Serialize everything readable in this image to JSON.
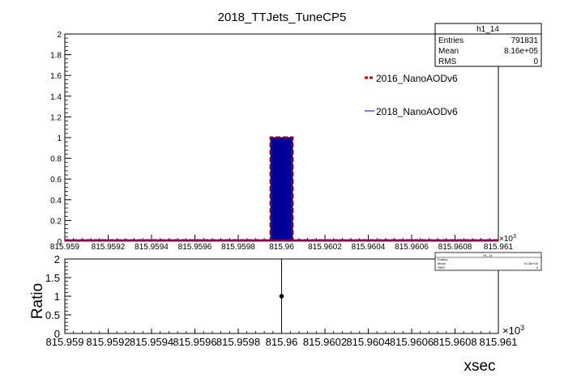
{
  "title": "2018_TTJets_TuneCP5",
  "colors": {
    "series_2016": "#cc0000",
    "series_2018": "#000099",
    "mean_fill": "#cc0000",
    "ratio_point": "#000000",
    "ratio_error": "#000099"
  },
  "stats_box": {
    "name": "h1_14",
    "rows": [
      {
        "label": "Entries",
        "value": "791831"
      },
      {
        "label": "Mean",
        "value": "8.16e+05"
      },
      {
        "label": "RMS",
        "value": "0"
      }
    ]
  },
  "mini_stats_box": {
    "name": "h1_14",
    "rows": [
      {
        "label": "Entries",
        "value": ""
      },
      {
        "label": "Mean",
        "value": "8.16e+05"
      },
      {
        "label": "RMS",
        "value": "0"
      }
    ]
  },
  "top_panel": {
    "x_exponent_label": "×10",
    "x_exponent_power": "3",
    "y_ticks": [
      "0",
      "0.2",
      "0.4",
      "0.6",
      "0.8",
      "1",
      "1.2",
      "1.4",
      "1.6",
      "1.8",
      "2"
    ]
  },
  "bottom_panel": {
    "ylabel": "Ratio",
    "xlabel": "xsec",
    "x_exponent_label": "×10",
    "x_exponent_power": "3",
    "y_ticks": [
      "0",
      "0.5",
      "1",
      "1.5",
      "2"
    ]
  },
  "x_ticks": [
    "815.959",
    "815.9592",
    "815.9594",
    "815.9596",
    "815.9598",
    "815.96",
    "815.9602",
    "815.9604",
    "815.9606",
    "815.9608",
    "815.961"
  ],
  "chart_data": [
    {
      "type": "bar",
      "panel": "top",
      "title": "2018_TTJets_TuneCP5",
      "xlim": [
        815.959,
        815.961
      ],
      "ylim": [
        0,
        2
      ],
      "x_scale_note": "×10^3",
      "series": [
        {
          "name": "2016_NanoAODv6",
          "bin_range": [
            815.95995,
            815.96005
          ],
          "value": 1,
          "style": "dashed"
        },
        {
          "name": "2018_NanoAODv6",
          "bin_range": [
            815.95995,
            815.96005
          ],
          "value": 1,
          "style": "solid"
        }
      ],
      "legend": [
        "2016_NanoAODv6",
        "2018_NanoAODv6"
      ]
    },
    {
      "type": "scatter",
      "panel": "bottom",
      "xlim": [
        815.959,
        815.961
      ],
      "ylim": [
        0,
        2
      ],
      "x_scale_note": "×10^3",
      "ylabel": "Ratio",
      "xlabel": "xsec",
      "points": [
        {
          "x": 815.96,
          "y": 1,
          "yerr_low": 1,
          "yerr_high": 1
        }
      ]
    }
  ]
}
